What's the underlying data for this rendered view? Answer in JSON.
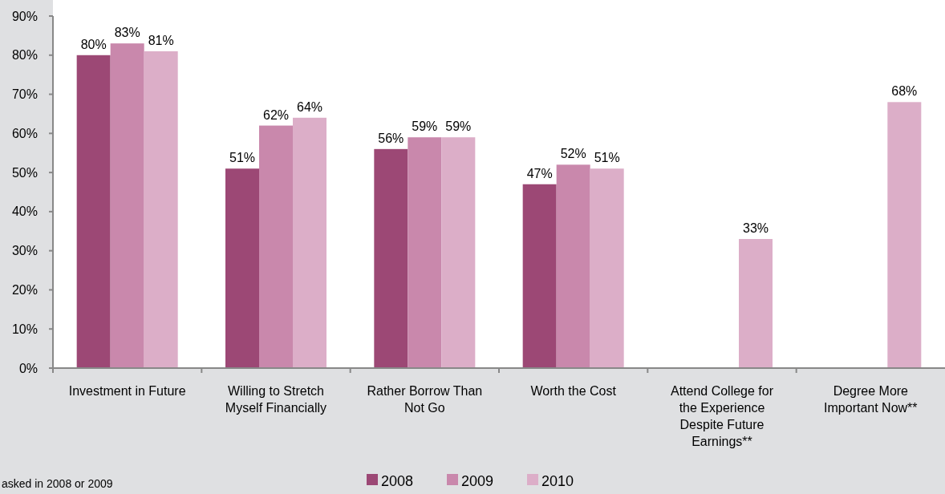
{
  "chart_data": {
    "type": "bar",
    "categories": [
      "Investment in Future",
      "Willing to Stretch Myself Financially",
      "Rather Borrow Than Not Go",
      "Worth the Cost",
      "Attend College for the Experience Despite Future Earnings**",
      "Degree More Important Now**"
    ],
    "series": [
      {
        "name": "2008",
        "color": "#9c4875",
        "values": [
          80,
          51,
          56,
          47,
          null,
          null
        ],
        "value_labels": [
          "80%",
          "51%",
          "56%",
          "47%",
          null,
          null
        ]
      },
      {
        "name": "2009",
        "color": "#c988ac",
        "values": [
          83,
          62,
          59,
          52,
          null,
          null
        ],
        "value_labels": [
          "83%",
          "62%",
          "59%",
          "52%",
          null,
          null
        ]
      },
      {
        "name": "2010",
        "color": "#dcaec8",
        "values": [
          81,
          64,
          59,
          51,
          33,
          68
        ],
        "value_labels": [
          "81%",
          "64%",
          "59%",
          "51%",
          "33%",
          "68%"
        ]
      }
    ],
    "ylim": [
      0,
      90
    ],
    "yticks": [
      {
        "value": 0,
        "label": "0%"
      },
      {
        "value": 10,
        "label": "10%"
      },
      {
        "value": 20,
        "label": "20%"
      },
      {
        "value": 30,
        "label": "30%"
      },
      {
        "value": 40,
        "label": "40%"
      },
      {
        "value": 50,
        "label": "50%"
      },
      {
        "value": 60,
        "label": "60%"
      },
      {
        "value": 70,
        "label": "70%"
      },
      {
        "value": 80,
        "label": "80%"
      },
      {
        "value": 90,
        "label": "90%"
      }
    ],
    "legend": "bottom",
    "annotations": [
      "asked in 2008 or 2009"
    ]
  }
}
